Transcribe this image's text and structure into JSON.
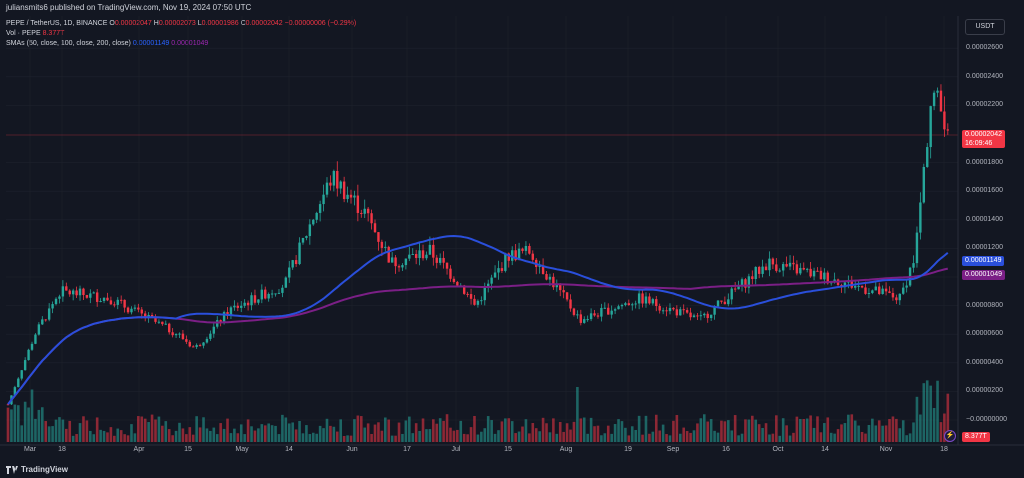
{
  "header": {
    "published": "juliansmits6 published on TradingView.com, Nov 19, 2024 07:50 UTC"
  },
  "legend": {
    "symbol": "PEPE / TetherUS, 1D, BINANCE",
    "o_label": "O",
    "o_value": "0.00002047",
    "h_label": "H",
    "h_value": "0.00002073",
    "l_label": "L",
    "l_value": "0.00001986",
    "c_label": "C",
    "c_value": "0.00002042",
    "change": "−0.00000006 (−0.29%)",
    "vol_label": "Vol · PEPE",
    "vol_value": "8.377T",
    "sma_label": "SMAs (50, close, 100, close, 200, close)",
    "sma_value_1": "0.00001149",
    "sma_value_2": "0.00001049"
  },
  "currency": "USDT",
  "y_axis": {
    "ticks": [
      "0.00002600",
      "0.00002400",
      "0.00002200",
      "0.00001800",
      "0.00001600",
      "0.00001400",
      "0.00001200",
      "0.00001000",
      "0.00000800",
      "0.00000600",
      "0.00000400",
      "0.00000200",
      "−0.00000000"
    ],
    "price_badge": "0.00002042",
    "countdown": "16:09:46",
    "sma1_badge": "0.00001149",
    "sma2_badge": "0.00001049",
    "vol_badge": "8.377T"
  },
  "x_axis": {
    "ticks": [
      "Mar",
      "18",
      "Apr",
      "15",
      "May",
      "14",
      "Jun",
      "17",
      "Jul",
      "15",
      "Aug",
      "19",
      "Sep",
      "16",
      "Oct",
      "14",
      "Nov",
      "18"
    ]
  },
  "colors": {
    "up": "#26a69a",
    "down": "#f23645",
    "sma50": "#2a4fdb",
    "sma200": "#7b1f86",
    "background": "#131722",
    "grid": "#1e222d"
  },
  "footer": {
    "brand": "TradingView"
  },
  "chart_data": {
    "type": "candlestick",
    "symbol": "PEPE / TetherUS",
    "interval": "1D",
    "ylim": [
      0,
      2.7e-06
    ],
    "last_close": 2.042e-05,
    "sma_50": 1.149e-05,
    "sma_200": 1.049e-05,
    "volume_last": "8.377T",
    "keypoints": [
      {
        "x": "Feb 28",
        "close": 1.1e-06
      },
      {
        "x": "Mar 5",
        "close": 6e-06
      },
      {
        "x": "Mar 14",
        "close": 9e-06
      },
      {
        "x": "Apr 1",
        "close": 8.5e-06
      },
      {
        "x": "Apr 13",
        "close": 6e-06
      },
      {
        "x": "Apr 17",
        "close": 5e-06
      },
      {
        "x": "May 1",
        "close": 7.7e-06
      },
      {
        "x": "May 15",
        "close": 9.5e-06
      },
      {
        "x": "May 20",
        "close": 1.4e-05
      },
      {
        "x": "May 27",
        "close": 1.7e-05
      },
      {
        "x": "Jun 5",
        "close": 1.45e-05
      },
      {
        "x": "Jun 12",
        "close": 1.1e-05
      },
      {
        "x": "Jun 20",
        "close": 1.18e-05
      },
      {
        "x": "Jul 4",
        "close": 9.5e-06
      },
      {
        "x": "Jul 8",
        "close": 8e-06
      },
      {
        "x": "Jul 15",
        "close": 1.15e-05
      },
      {
        "x": "Jul 23",
        "close": 1.18e-05
      },
      {
        "x": "Aug 5",
        "close": 7e-06
      },
      {
        "x": "Aug 24",
        "close": 8.5e-06
      },
      {
        "x": "Sep 6",
        "close": 7e-06
      },
      {
        "x": "Sep 27",
        "close": 1.1e-05
      },
      {
        "x": "Oct 14",
        "close": 1e-05
      },
      {
        "x": "Nov 4",
        "close": 8.5e-06
      },
      {
        "x": "Nov 10",
        "close": 1.15e-05
      },
      {
        "x": "Nov 14",
        "close": 2.3e-05
      },
      {
        "x": "Nov 18",
        "close": 2.04e-05
      }
    ]
  }
}
